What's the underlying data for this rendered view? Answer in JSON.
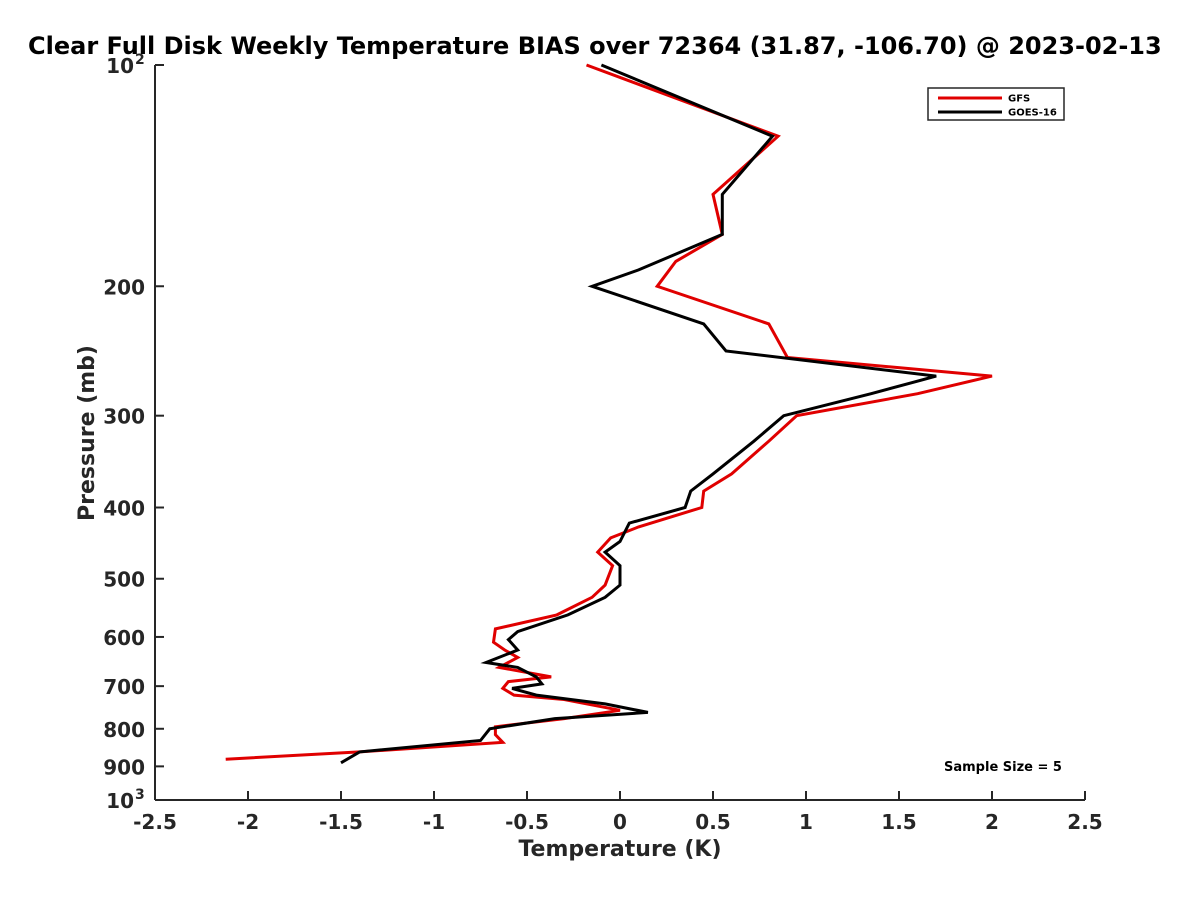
{
  "chart_data": {
    "type": "line",
    "title": "Clear Full Disk Weekly Temperature BIAS over 72364 (31.87, -106.70) @ 2023-02-13",
    "xlabel": "Temperature (K)",
    "ylabel": "Pressure (mb)",
    "xlim": [
      -2.5,
      2.5
    ],
    "ylim": [
      1000,
      100
    ],
    "yscale": "log",
    "y_reversed": true,
    "grid": false,
    "legend_position": "top-right",
    "x_ticks": [
      "-2.5",
      "-2",
      "-1.5",
      "-1",
      "-0.5",
      "0",
      "0.5",
      "1",
      "1.5",
      "2",
      "2.5"
    ],
    "y_ticks": [
      {
        "value": 100,
        "label": "10",
        "sup": "2"
      },
      {
        "value": 200,
        "label": "200",
        "sup": ""
      },
      {
        "value": 300,
        "label": "300",
        "sup": ""
      },
      {
        "value": 400,
        "label": "400",
        "sup": ""
      },
      {
        "value": 500,
        "label": "500",
        "sup": ""
      },
      {
        "value": 600,
        "label": "600",
        "sup": ""
      },
      {
        "value": 700,
        "label": "700",
        "sup": ""
      },
      {
        "value": 800,
        "label": "800",
        "sup": ""
      },
      {
        "value": 900,
        "label": "900",
        "sup": ""
      },
      {
        "value": 1000,
        "label": "10",
        "sup": "3"
      }
    ],
    "annotation": "Sample Size = 5",
    "series": [
      {
        "name": "GFS",
        "color": "#e00000",
        "points": [
          [
            -0.18,
            100
          ],
          [
            0.85,
            125
          ],
          [
            0.5,
            150
          ],
          [
            0.55,
            170
          ],
          [
            0.3,
            185
          ],
          [
            0.2,
            200
          ],
          [
            0.8,
            225
          ],
          [
            0.9,
            250
          ],
          [
            2.0,
            265
          ],
          [
            1.6,
            280
          ],
          [
            0.95,
            300
          ],
          [
            0.8,
            325
          ],
          [
            0.6,
            360
          ],
          [
            0.45,
            380
          ],
          [
            0.44,
            400
          ],
          [
            0.1,
            425
          ],
          [
            -0.05,
            440
          ],
          [
            -0.12,
            460
          ],
          [
            -0.04,
            480
          ],
          [
            -0.08,
            510
          ],
          [
            -0.15,
            530
          ],
          [
            -0.34,
            560
          ],
          [
            -0.67,
            585
          ],
          [
            -0.68,
            610
          ],
          [
            -0.62,
            625
          ],
          [
            -0.55,
            640
          ],
          [
            -0.65,
            660
          ],
          [
            -0.37,
            680
          ],
          [
            -0.6,
            690
          ],
          [
            -0.63,
            705
          ],
          [
            -0.57,
            720
          ],
          [
            -0.3,
            730
          ],
          [
            0.0,
            755
          ],
          [
            -0.3,
            775
          ],
          [
            -0.67,
            795
          ],
          [
            -0.67,
            815
          ],
          [
            -0.63,
            835
          ],
          [
            -1.4,
            860
          ],
          [
            -2.12,
            880
          ]
        ]
      },
      {
        "name": "GOES-16",
        "color": "#000000",
        "points": [
          [
            -0.1,
            100
          ],
          [
            0.82,
            125
          ],
          [
            0.55,
            150
          ],
          [
            0.55,
            170
          ],
          [
            0.1,
            190
          ],
          [
            -0.15,
            200
          ],
          [
            0.45,
            225
          ],
          [
            0.57,
            245
          ],
          [
            1.7,
            265
          ],
          [
            1.35,
            280
          ],
          [
            0.88,
            300
          ],
          [
            0.72,
            325
          ],
          [
            0.5,
            360
          ],
          [
            0.38,
            380
          ],
          [
            0.35,
            400
          ],
          [
            0.05,
            420
          ],
          [
            0.0,
            445
          ],
          [
            -0.08,
            460
          ],
          [
            0.0,
            480
          ],
          [
            0.0,
            510
          ],
          [
            -0.08,
            530
          ],
          [
            -0.28,
            560
          ],
          [
            -0.55,
            590
          ],
          [
            -0.6,
            605
          ],
          [
            -0.55,
            625
          ],
          [
            -0.72,
            650
          ],
          [
            -0.55,
            660
          ],
          [
            -0.45,
            680
          ],
          [
            -0.42,
            695
          ],
          [
            -0.58,
            705
          ],
          [
            -0.45,
            720
          ],
          [
            -0.08,
            740
          ],
          [
            0.15,
            760
          ],
          [
            -0.35,
            775
          ],
          [
            -0.7,
            800
          ],
          [
            -0.75,
            830
          ],
          [
            -1.4,
            860
          ],
          [
            -1.5,
            890
          ]
        ]
      }
    ]
  }
}
